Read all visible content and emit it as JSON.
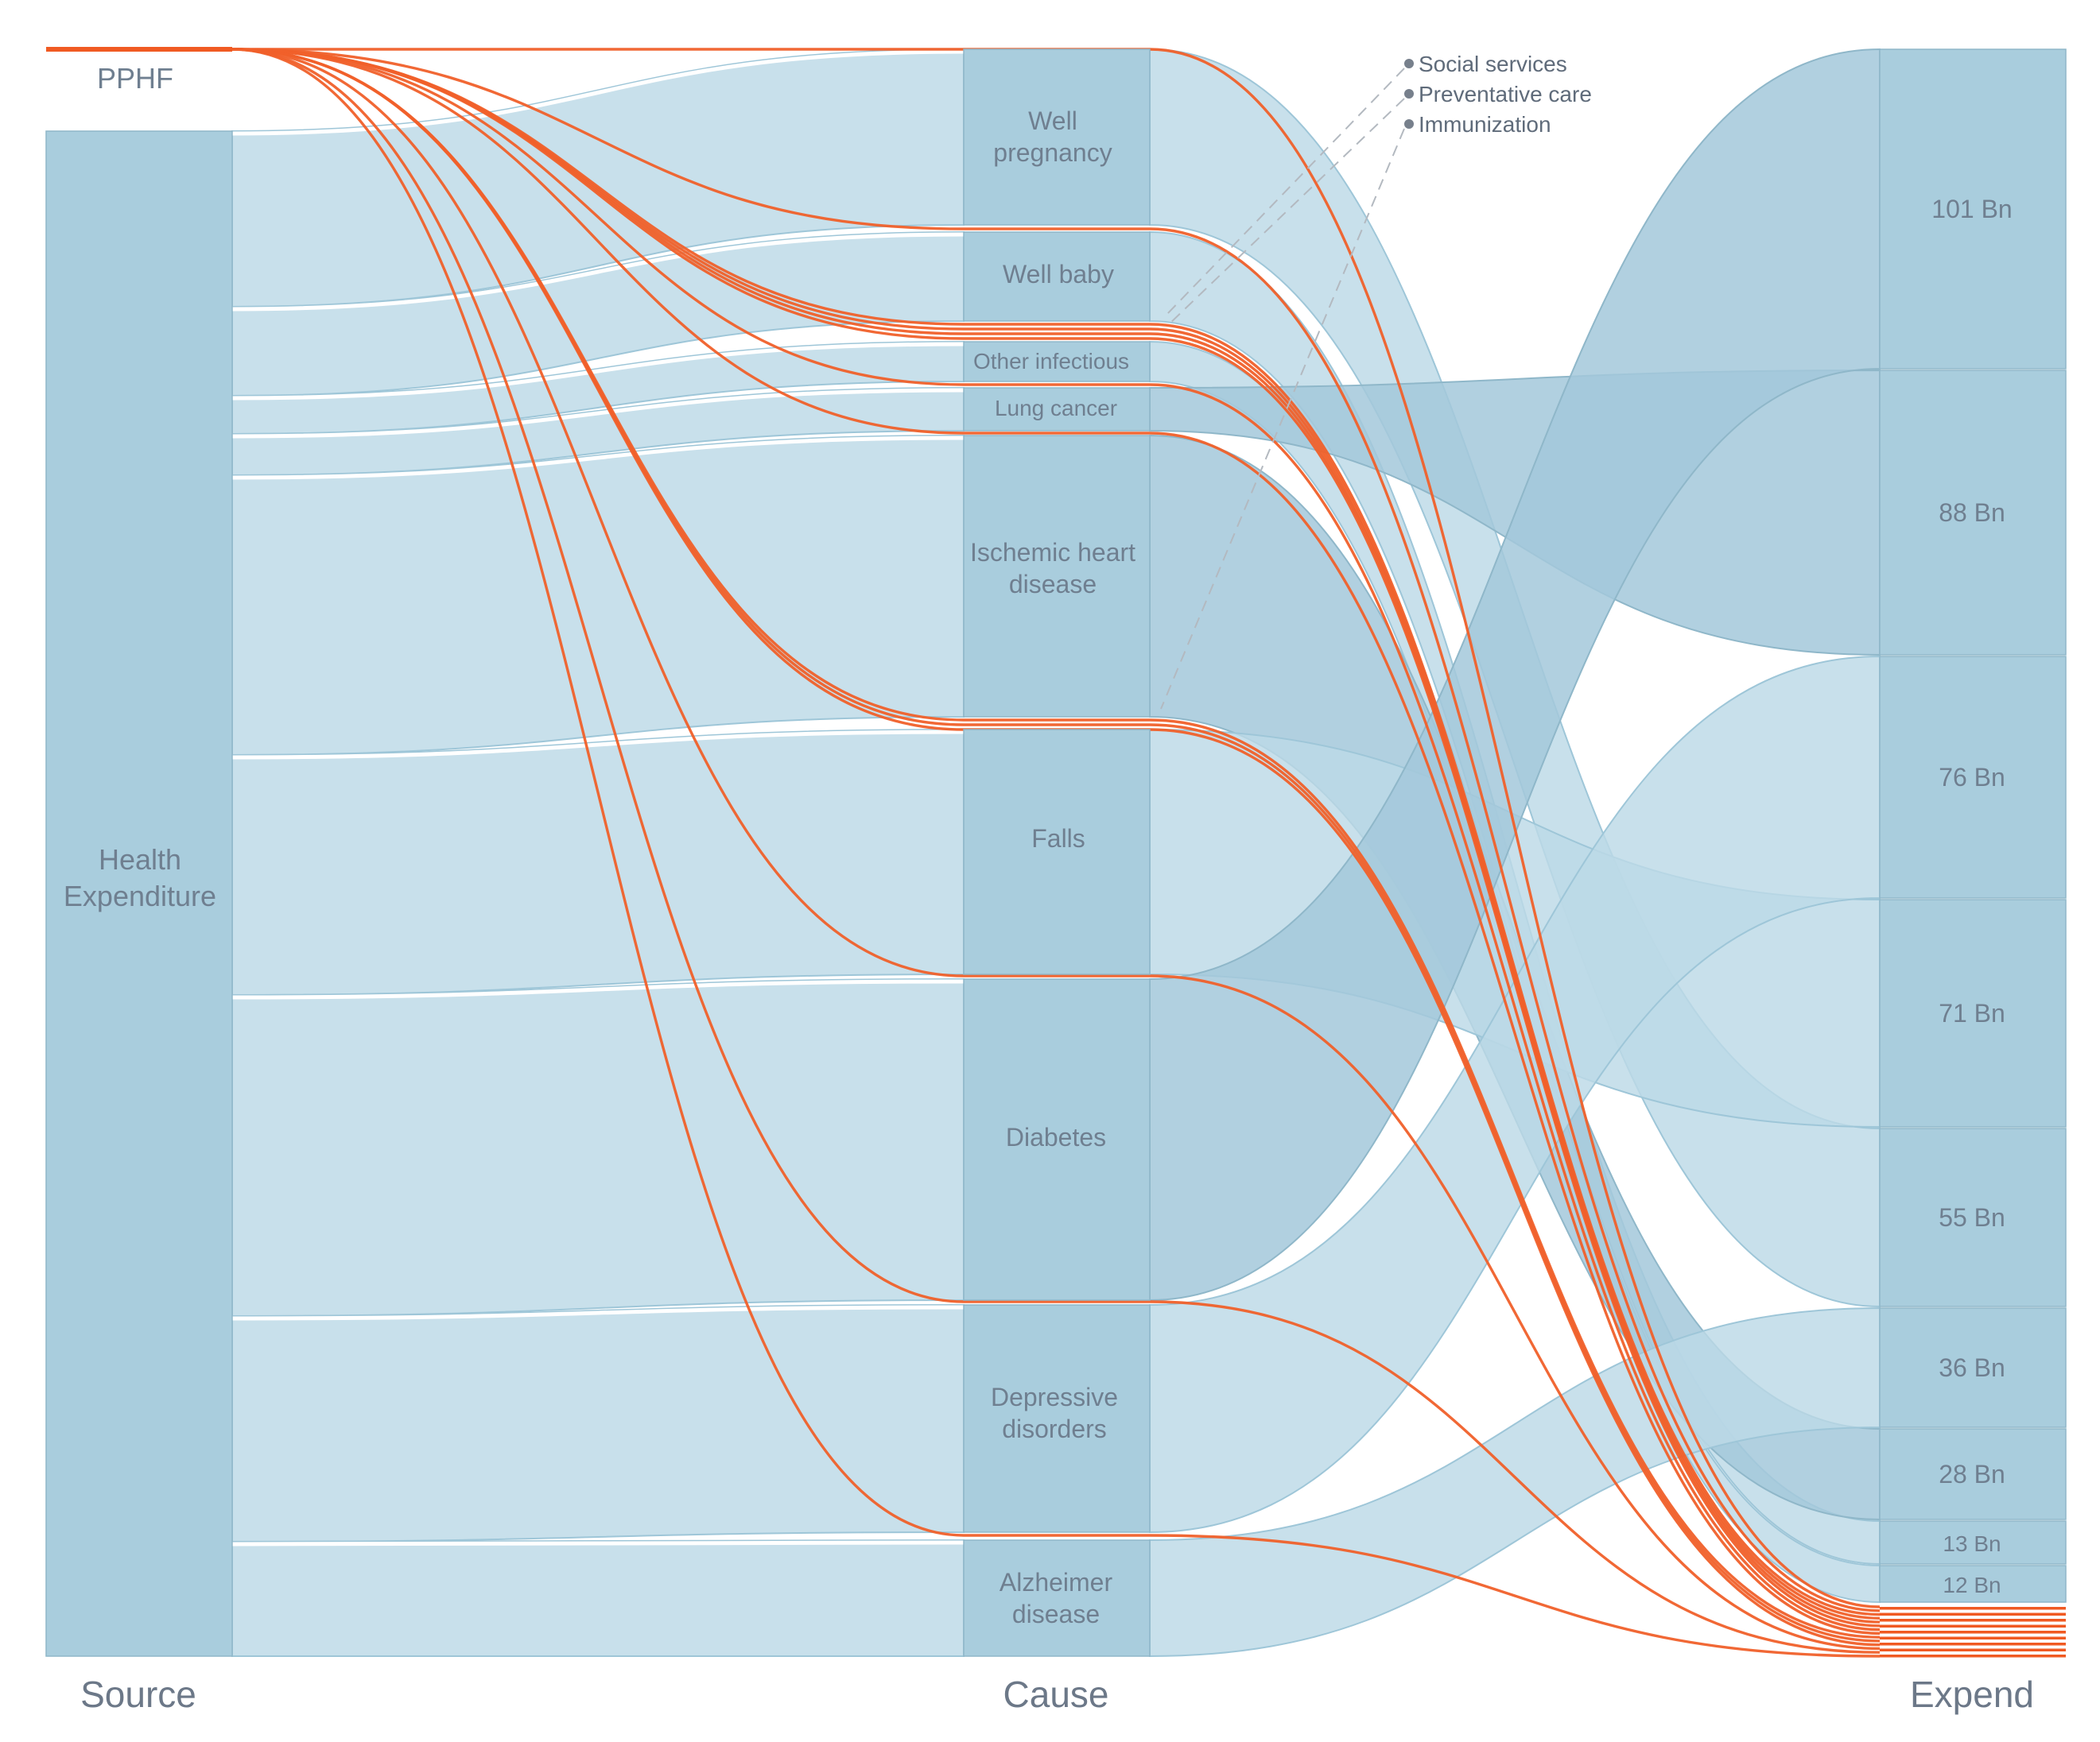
{
  "diagram": {
    "type": "sankey",
    "columns": [
      {
        "id": "source",
        "label": "Source"
      },
      {
        "id": "cause",
        "label": "Cause"
      },
      {
        "id": "expend",
        "label": "Expend"
      }
    ],
    "source_nodes": [
      {
        "id": "pphf",
        "label": "PPHF",
        "color": "#f05a22"
      },
      {
        "id": "health",
        "label": "Health Expenditure",
        "lines": [
          "Health",
          "Expenditure"
        ],
        "color": "#a9cddd"
      }
    ],
    "cause_nodes": [
      {
        "id": "well_pregnancy",
        "label": "Well pregnancy",
        "lines": [
          "Well",
          "pregnancy"
        ]
      },
      {
        "id": "well_baby",
        "label": "Well baby",
        "lines": [
          "Well baby"
        ]
      },
      {
        "id": "other_infectious",
        "label": "Other infectious",
        "lines": [
          "Other infectious"
        ]
      },
      {
        "id": "lung_cancer",
        "label": "Lung cancer",
        "lines": [
          "Lung cancer"
        ]
      },
      {
        "id": "ischemic",
        "label": "Ischemic heart disease",
        "lines": [
          "Ischemic heart",
          "disease"
        ]
      },
      {
        "id": "falls",
        "label": "Falls",
        "lines": [
          "Falls"
        ]
      },
      {
        "id": "diabetes",
        "label": "Diabetes",
        "lines": [
          "Diabetes"
        ]
      },
      {
        "id": "depressive",
        "label": "Depressive disorders",
        "lines": [
          "Depressive",
          "disorders"
        ]
      },
      {
        "id": "alzheimer",
        "label": "Alzheimer disease",
        "lines": [
          "Alzheimer",
          "disease"
        ]
      }
    ],
    "expend_nodes": [
      {
        "id": "e101",
        "label": "101 Bn",
        "value_bn": 101
      },
      {
        "id": "e88",
        "label": "88 Bn",
        "value_bn": 88
      },
      {
        "id": "e76",
        "label": "76 Bn",
        "value_bn": 76
      },
      {
        "id": "e71",
        "label": "71 Bn",
        "value_bn": 71
      },
      {
        "id": "e55",
        "label": "55 Bn",
        "value_bn": 55
      },
      {
        "id": "e36",
        "label": "36 Bn",
        "value_bn": 36
      },
      {
        "id": "e28",
        "label": "28 Bn",
        "value_bn": 28
      },
      {
        "id": "e13",
        "label": "13 Bn",
        "value_bn": 13
      },
      {
        "id": "e12",
        "label": "12 Bn",
        "value_bn": 12
      }
    ],
    "pphf_programs": [
      "Social services",
      "Preventative care",
      "Immunization"
    ],
    "cause_to_expend": [
      {
        "from": "well_pregnancy",
        "to": "e55"
      },
      {
        "from": "well_baby",
        "to": "e13"
      },
      {
        "from": "other_infectious",
        "to": "e12"
      },
      {
        "from": "lung_cancer",
        "to": "e88"
      },
      {
        "from": "ischemic",
        "to": "e28"
      },
      {
        "from": "falls",
        "to": "e71"
      },
      {
        "from": "diabetes",
        "to": "e101"
      },
      {
        "from": "depressive",
        "to": "e76"
      },
      {
        "from": "alzheimer",
        "to": "e36"
      }
    ],
    "colors": {
      "node": "#a9cddd",
      "band": "#bcd9e7",
      "pphf_flow": "#f05a22",
      "annotation": "#5f6b7a"
    }
  }
}
